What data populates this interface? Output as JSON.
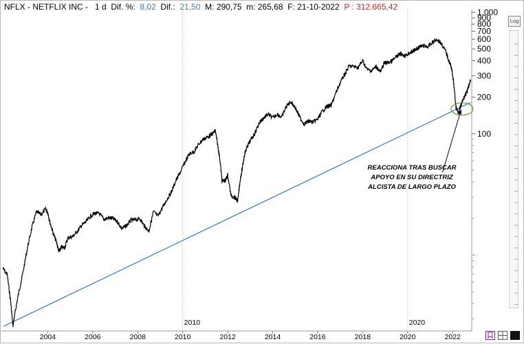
{
  "header": {
    "symbol": "NFLX - NETFLIX INC -",
    "period": "1 d",
    "dif_pct_label": "Dif. %:",
    "dif_pct_value": "8,02",
    "dif_label": "Dif.:",
    "dif_value": "21,50",
    "max_label": "M: 290,75",
    "min_label": "m: 265,68",
    "date_label": "F: 21-10-2022",
    "price_label": "P : 312.665,42"
  },
  "annotation": [
    "REACCIONA TRAS BUSCAR",
    "APOYO EN SU DIRECTRIZ",
    "ALCISTA DE LARGO PLAZO"
  ],
  "log_button": "Log",
  "colors": {
    "price": "#000000",
    "trendline": "#1f6fd1",
    "circle": "#5aa02c",
    "header_value": "#3a7bd5",
    "header_price": "#e02020"
  },
  "chart_data": {
    "type": "line",
    "title": "NFLX - NETFLIX INC",
    "y_scale": "log",
    "ylim": [
      2.5,
      1000
    ],
    "y_ticks": [
      100,
      200,
      300,
      400,
      500,
      600,
      700,
      800,
      900,
      1000
    ],
    "y_tick_labels": [
      "100",
      "200",
      "300",
      "400",
      "500",
      "600",
      "700",
      "800",
      "900",
      "1.000"
    ],
    "xlim": [
      2002.0,
      2022.85
    ],
    "x_ticks": [
      2004,
      2006,
      2008,
      2010,
      2012,
      2014,
      2016,
      2018,
      2020,
      2022
    ],
    "x_tick_labels": [
      "2004",
      "2006",
      "2008",
      "2010",
      "2012",
      "2014",
      "2016",
      "2018",
      "2020",
      "2022"
    ],
    "vertical_markers": [
      {
        "x": 2010,
        "label": "2010"
      },
      {
        "x": 2020,
        "label": "2020"
      }
    ],
    "series": [
      {
        "x": [
          2002.0,
          2002.2,
          2002.35,
          2002.45,
          2002.55,
          2002.7,
          2002.9,
          2003.1,
          2003.3,
          2003.5,
          2003.7,
          2003.9,
          2004.0,
          2004.1,
          2004.25,
          2004.4,
          2004.5,
          2004.6,
          2004.75,
          2004.9,
          2005.1,
          2005.3,
          2005.5,
          2005.7,
          2005.9,
          2006.1,
          2006.3,
          2006.5,
          2006.7,
          2006.9,
          2007.1,
          2007.3,
          2007.5,
          2007.7,
          2007.9,
          2008.1,
          2008.3,
          2008.5,
          2008.7,
          2008.9,
          2009.1,
          2009.3,
          2009.5,
          2009.7,
          2009.9,
          2010.1,
          2010.3,
          2010.5,
          2010.7,
          2010.9,
          2011.1,
          2011.3,
          2011.45,
          2011.55,
          2011.65,
          2011.75,
          2011.9,
          2012.0,
          2012.15,
          2012.3,
          2012.45,
          2012.55,
          2012.65,
          2012.75,
          2012.85,
          2013.0,
          2013.2,
          2013.4,
          2013.6,
          2013.8,
          2014.0,
          2014.2,
          2014.4,
          2014.6,
          2014.8,
          2015.0,
          2015.2,
          2015.4,
          2015.6,
          2015.8,
          2016.0,
          2016.2,
          2016.4,
          2016.6,
          2016.8,
          2017.0,
          2017.2,
          2017.4,
          2017.6,
          2017.8,
          2018.0,
          2018.2,
          2018.4,
          2018.6,
          2018.8,
          2018.95,
          2019.1,
          2019.3,
          2019.5,
          2019.7,
          2019.9,
          2020.1,
          2020.2,
          2020.35,
          2020.5,
          2020.7,
          2020.9,
          2021.1,
          2021.3,
          2021.5,
          2021.7,
          2021.85,
          2021.95,
          2022.05,
          2022.15,
          2022.25,
          2022.35,
          2022.45,
          2022.55,
          2022.65,
          2022.72,
          2022.8
        ],
        "y": [
          7.8,
          6.9,
          4.2,
          2.6,
          3.4,
          4.8,
          7.2,
          11.5,
          17.0,
          22.8,
          21.5,
          24.0,
          22.5,
          18.6,
          15.0,
          12.6,
          10.6,
          11.6,
          11.5,
          13.9,
          14.2,
          15.6,
          17.5,
          18.8,
          20.9,
          22.1,
          21.9,
          19.7,
          20.3,
          20.0,
          18.8,
          16.5,
          17.5,
          19.4,
          19.5,
          20.0,
          17.3,
          15.8,
          22.9,
          20.9,
          24.6,
          28.8,
          33.2,
          41.2,
          48.4,
          58.3,
          68.3,
          71.0,
          81.3,
          89.8,
          93.8,
          99.0,
          106.0,
          82.5,
          62.3,
          40.7,
          41.1,
          45.8,
          30.8,
          30.0,
          28.0,
          41.0,
          51.9,
          68.0,
          76.8,
          87.3,
          100.3,
          122.5,
          135.2,
          145.0,
          134.8,
          145.3,
          136.8,
          166.8,
          183.9,
          165.2,
          137.3,
          120.2,
          127.0,
          124.5,
          131.7,
          152.3,
          167.1,
          171.1,
          214.0,
          262.5,
          308.2,
          361.1,
          357.5,
          352.0,
          398.4,
          337.7,
          330.0,
          358.0,
          323.1,
          380.6,
          385.0,
          396.0,
          431.6,
          457.5,
          437.4,
          467.0,
          473.0,
          493.4,
          514.7,
          529.9,
          521.0,
          563.8,
          602.9,
          553.3,
          474.6,
          391.9,
          353.0,
          256.6,
          165.2,
          150.0,
          166.0,
          187.1,
          207.6,
          222.8,
          248.1,
          278.6
        ],
        "color": "#000000"
      }
    ],
    "trendline": {
      "x": [
        2002.05,
        2022.8
      ],
      "y": [
        2.6,
        181.0
      ],
      "color": "#1f6fd1"
    },
    "highlight_circle": {
      "x": 2022.42,
      "y": 160,
      "color": "#5aa02c"
    },
    "annotation_arrow": {
      "from": [
        2021.55,
        48
      ],
      "to": [
        2022.38,
        158
      ]
    }
  }
}
